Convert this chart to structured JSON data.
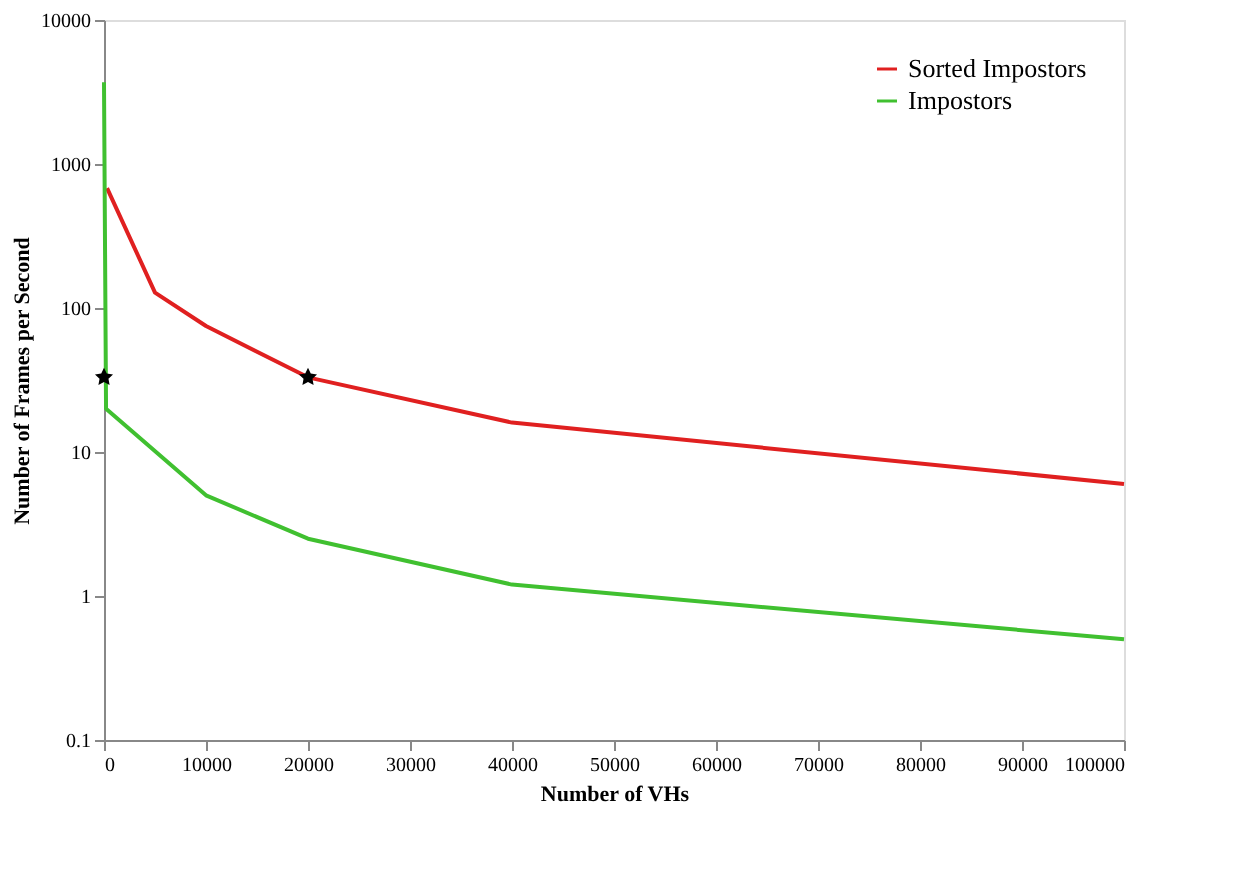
{
  "chart_data": {
    "type": "line",
    "xlabel": "Number of VHs",
    "ylabel": "Number of Frames per Second",
    "log": "y",
    "xlim": [
      0,
      100000
    ],
    "xticks": [
      0,
      10000,
      20000,
      30000,
      40000,
      50000,
      60000,
      70000,
      80000,
      90000,
      100000
    ],
    "ylim": [
      0.1,
      10000
    ],
    "yticks": [
      0.1,
      1,
      10,
      100,
      1000,
      10000
    ],
    "grid": false,
    "legend": "top right",
    "marker": "none",
    "line_style": "solid",
    "series": [
      {
        "name": "Sorted Impostors",
        "color": "#e02020",
        "x": [
          300,
          5000,
          10000,
          20000,
          40000,
          100000
        ],
        "values": [
          680,
          128,
          75,
          33,
          16,
          6
        ]
      },
      {
        "name": "Impostors",
        "color": "#40c030",
        "x": [
          0,
          200,
          10000,
          20000,
          40000,
          100000
        ],
        "values": [
          3700,
          20,
          5,
          2.5,
          1.2,
          0.5
        ]
      },
      {
        "type": "scatter",
        "marker": "star",
        "color": "#000000",
        "x": [
          0,
          20000
        ],
        "values": [
          33,
          33
        ]
      }
    ]
  }
}
